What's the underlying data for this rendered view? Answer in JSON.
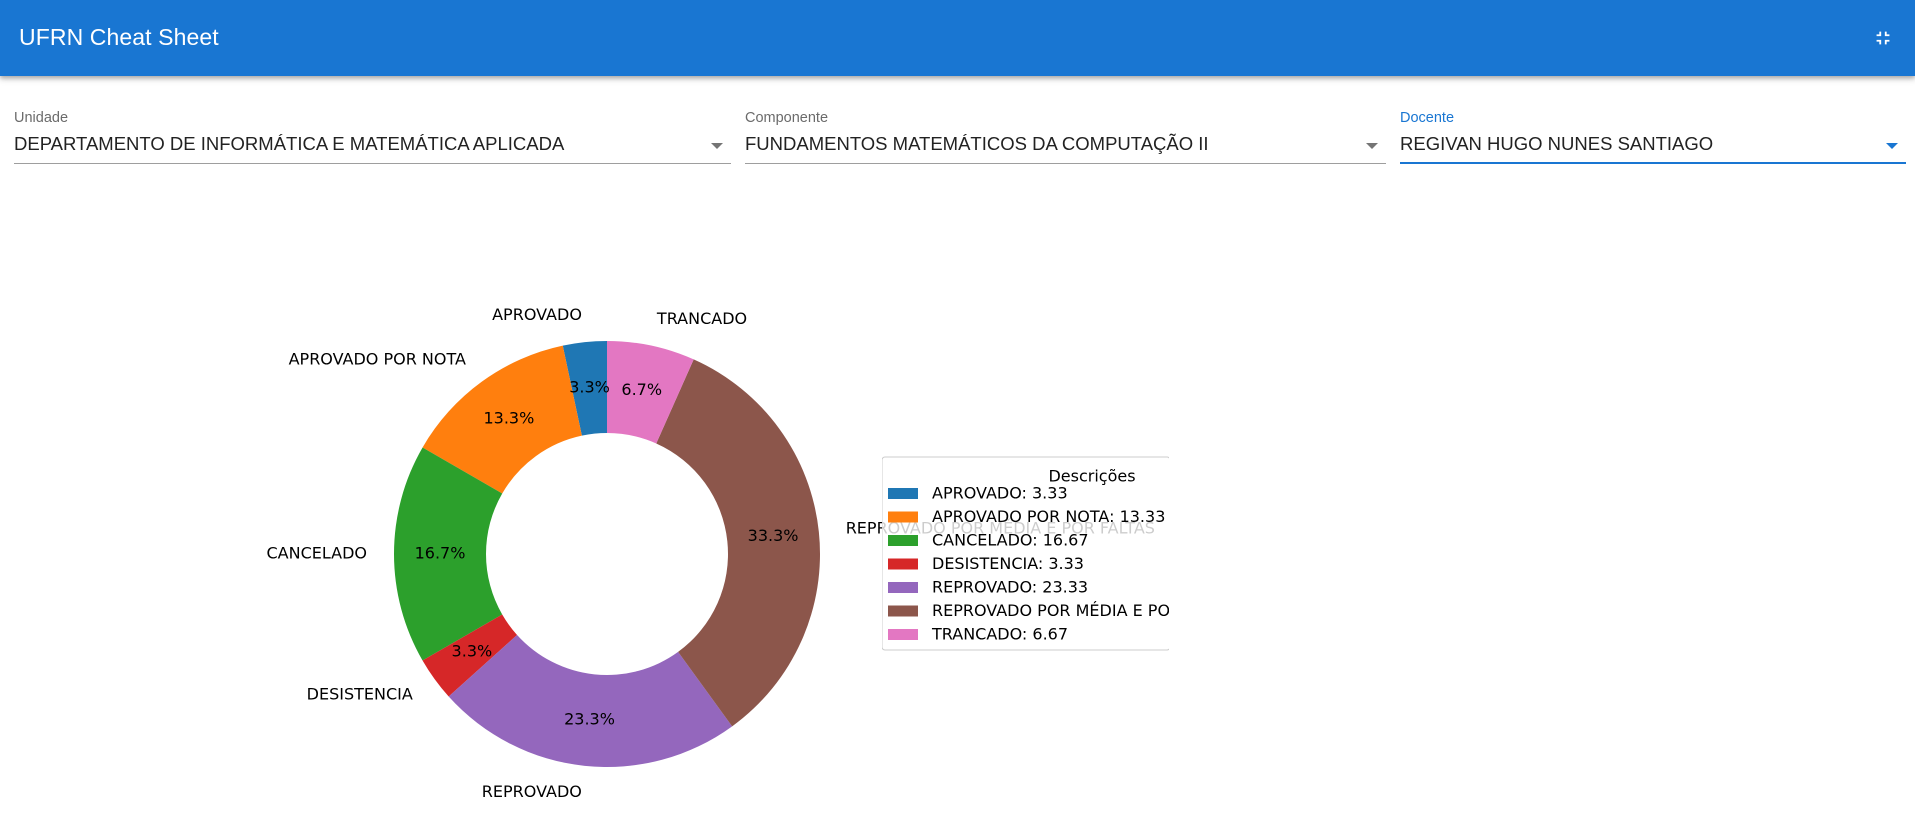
{
  "app": {
    "title": "UFRN Cheat Sheet",
    "exit_icon": "fullscreen-exit-icon"
  },
  "filters": {
    "unidade": {
      "label": "Unidade",
      "value": "DEPARTAMENTO DE INFORMÁTICA E MATEMÁTICA APLICADA"
    },
    "componente": {
      "label": "Componente",
      "value": "FUNDAMENTOS MATEMÁTICOS DA COMPUTAÇÃO II"
    },
    "docente": {
      "label": "Docente",
      "value": "REGIVAN HUGO NUNES SANTIAGO"
    }
  },
  "colors": {
    "primary": "#1976d2"
  },
  "chart_data": {
    "type": "pie",
    "style": "donut",
    "legend_title": "Descrições",
    "legend_position": "right",
    "slices": [
      {
        "label": "APROVADO",
        "value": 3.33,
        "pct_label": "3.3%",
        "legend": "APROVADO: 3.33",
        "color": "#1f77b4"
      },
      {
        "label": "APROVADO POR NOTA",
        "value": 13.33,
        "pct_label": "13.3%",
        "legend": "APROVADO POR NOTA: 13.33",
        "color": "#ff7f0e"
      },
      {
        "label": "CANCELADO",
        "value": 16.67,
        "pct_label": "16.7%",
        "legend": "CANCELADO: 16.67",
        "color": "#2ca02c"
      },
      {
        "label": "DESISTENCIA",
        "value": 3.33,
        "pct_label": "3.3%",
        "legend": "DESISTENCIA: 3.33",
        "color": "#d62728"
      },
      {
        "label": "REPROVADO",
        "value": 23.33,
        "pct_label": "23.3%",
        "legend": "REPROVADO: 23.33",
        "color": "#9467bd"
      },
      {
        "label": "REPROVADO POR MÉDIA E POR FALTAS",
        "value": 33.33,
        "pct_label": "33.3%",
        "legend": "REPROVADO POR MÉDIA E PO",
        "color": "#8c564b"
      },
      {
        "label": "TRANCADO",
        "value": 6.67,
        "pct_label": "6.7%",
        "legend": "TRANCADO: 6.67",
        "color": "#e377c2"
      }
    ]
  }
}
